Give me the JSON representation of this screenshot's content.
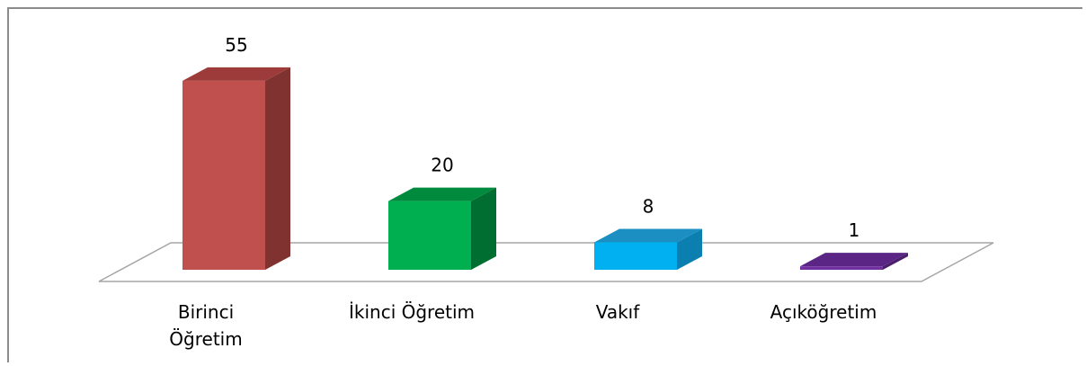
{
  "chart_data": {
    "type": "bar3d",
    "categories": [
      "Birinci\nÖğretim",
      "İkinci Öğretim",
      "Vakıf",
      "Açıköğretim"
    ],
    "values": [
      55,
      20,
      8,
      1
    ],
    "colors": [
      "#c0504d",
      "#00b050",
      "#00b0f0",
      "#7030a0"
    ],
    "side_colors": [
      "#7f3230",
      "#006e30",
      "#0a7fb0",
      "#4b1f6c"
    ],
    "top_colors": [
      "#9c3b39",
      "#008a3e",
      "#1c8fc2",
      "#5a2585"
    ]
  }
}
